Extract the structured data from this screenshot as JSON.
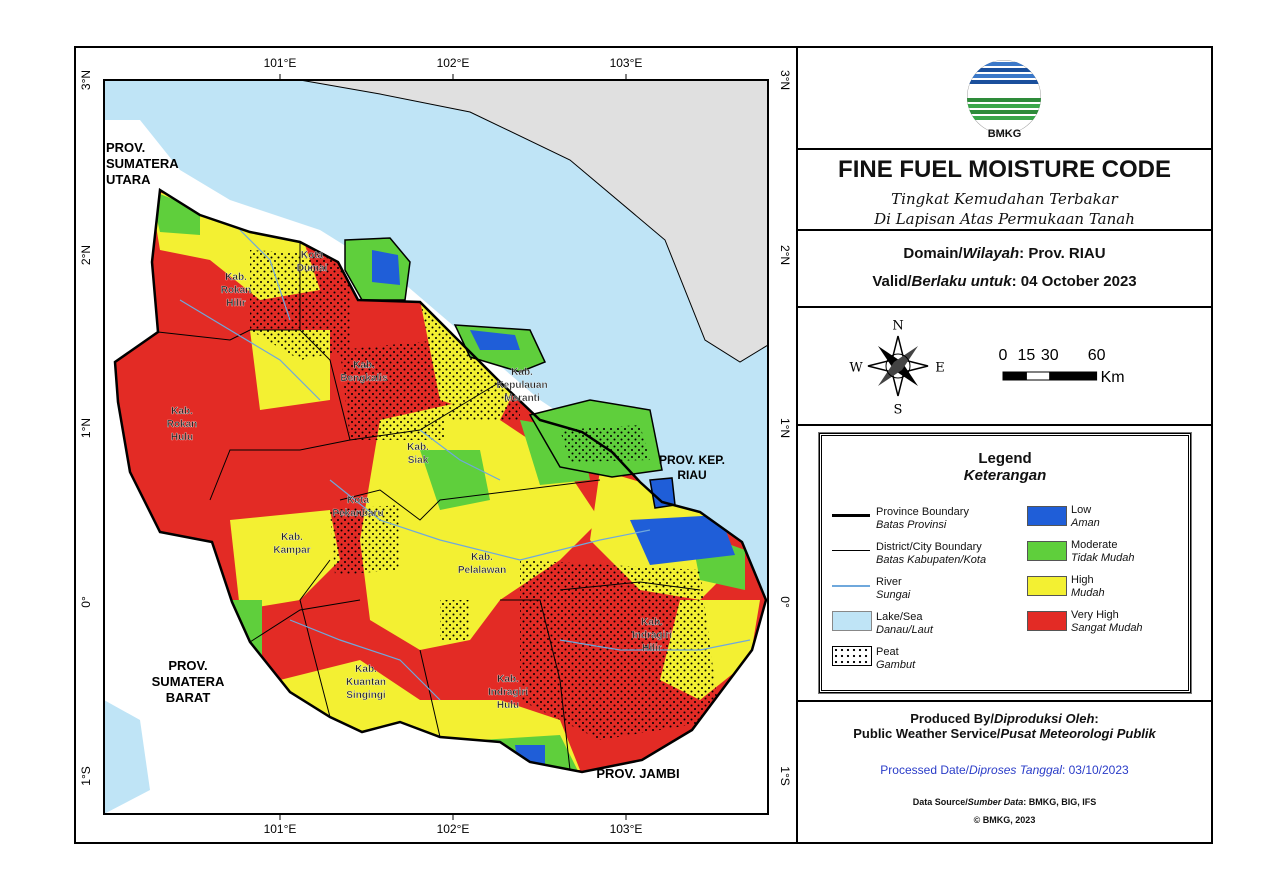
{
  "panel": {
    "logo_text": "BMKG",
    "title": "FINE FUEL MOISTURE CODE",
    "subtitle": [
      "Tingkat Kemudahan Terbakar",
      "Di Lapisan Atas Permukaan Tanah"
    ],
    "domain": {
      "label": "Domain/",
      "label_local": "Wilayah",
      "value": ": Prov. RIAU"
    },
    "valid": {
      "label": "Valid/",
      "label_local": "Berlaku untuk",
      "value": ": 04 October 2023"
    },
    "compass": {
      "n": "N",
      "s": "S",
      "w": "W",
      "e": "E"
    },
    "scale": {
      "ticks": [
        0,
        15,
        30,
        60
      ],
      "unit": "Km"
    },
    "legend": {
      "title": "Legend",
      "title_local": "Keterangan",
      "features": [
        {
          "name": "Province Boundary",
          "name_local": "Batas Provinsi"
        },
        {
          "name": "District/City Boundary",
          "name_local": "Batas Kabupaten/Kota"
        },
        {
          "name": "River",
          "name_local": "Sungai"
        },
        {
          "name": "Lake/Sea",
          "name_local": "Danau/Laut"
        },
        {
          "name": "Peat",
          "name_local": "Gambut"
        }
      ],
      "classes": [
        {
          "name": "Low",
          "name_local": "Aman",
          "color": "#1f5ed8"
        },
        {
          "name": "Moderate",
          "name_local": "Tidak Mudah",
          "color": "#5fcf3c"
        },
        {
          "name": "High",
          "name_local": "Mudah",
          "color": "#f3f032"
        },
        {
          "name": "Very High",
          "name_local": "Sangat Mudah",
          "color": "#e32b25"
        }
      ]
    },
    "footer": {
      "produced": {
        "label": "Produced By/",
        "label_local": "Diproduksi Oleh",
        "suffix": ":"
      },
      "service": {
        "label": "Public Weather Service/",
        "label_local": "Pusat Meteorologi Publik"
      },
      "processed": {
        "label": "Processed Date/",
        "label_local": "Diproses Tanggal",
        "value": ": 03/10/2023"
      },
      "source": {
        "label": "Data Source/",
        "label_local": "Sumber Data",
        "value": ": BMKG, BIG, IFS"
      },
      "copyright": "© BMKG, 2023"
    }
  },
  "map": {
    "longitudes": [
      "101°E",
      "102°E",
      "103°E"
    ],
    "latitudes": [
      "3°N",
      "2°N",
      "1°N",
      "0°",
      "1°S"
    ],
    "labels": [
      {
        "lines": [
          "PROV.",
          "SUMATERA",
          "UTARA"
        ]
      },
      {
        "lines": [
          "Kota",
          "Dumai"
        ]
      },
      {
        "lines": [
          "Kab.",
          "Rokan",
          "Hilir"
        ]
      },
      {
        "lines": [
          "Kab.",
          "Bengkalis"
        ]
      },
      {
        "lines": [
          "Kab.",
          "Kepulauan",
          "Meranti"
        ]
      },
      {
        "lines": [
          "Kab.",
          "Rokan",
          "Hulu"
        ]
      },
      {
        "lines": [
          "Kab.",
          "Siak"
        ]
      },
      {
        "lines": [
          "PROV. KEP.",
          "RIAU"
        ]
      },
      {
        "lines": [
          "Kota",
          "Pekanbaru"
        ]
      },
      {
        "lines": [
          "Kab.",
          "Kampar"
        ]
      },
      {
        "lines": [
          "Kab.",
          "Pelalawan"
        ]
      },
      {
        "lines": [
          "Kab.",
          "Indragiri",
          "Hilir"
        ]
      },
      {
        "lines": [
          "PROV.",
          "SUMATERA",
          "BARAT"
        ]
      },
      {
        "lines": [
          "Kab.",
          "Kuantan",
          "Singingi"
        ]
      },
      {
        "lines": [
          "Kab.",
          "Indragiri",
          "Hulu"
        ]
      },
      {
        "lines": [
          "PROV. JAMBI"
        ]
      }
    ]
  }
}
